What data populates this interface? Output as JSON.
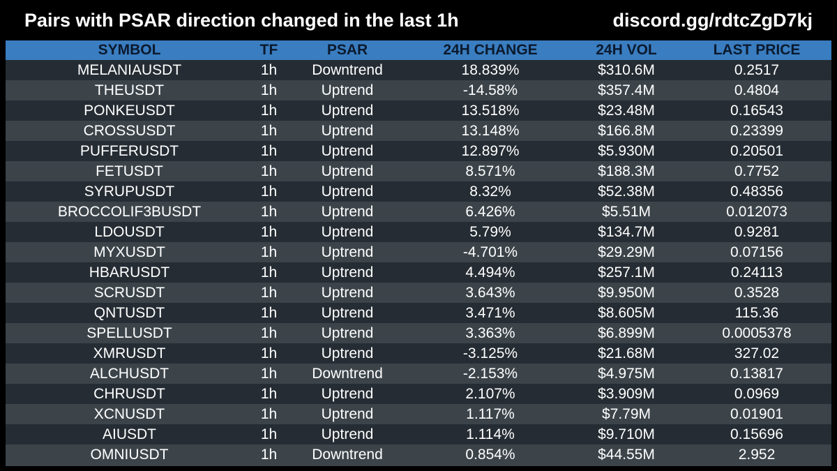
{
  "header": {
    "title": "Pairs with PSAR direction changed in the last 1h",
    "link": "discord.gg/rdtcZgD7kj"
  },
  "table": {
    "columns": [
      "SYMBOL",
      "TF",
      "PSAR",
      "24H CHANGE",
      "24H VOL",
      "LAST PRICE"
    ],
    "rows": [
      [
        "MELANIAUSDT",
        "1h",
        "Downtrend",
        "18.839%",
        "$310.6M",
        "0.2517"
      ],
      [
        "THEUSDT",
        "1h",
        "Uptrend",
        "-14.58%",
        "$357.4M",
        "0.4804"
      ],
      [
        "PONKEUSDT",
        "1h",
        "Uptrend",
        "13.518%",
        "$23.48M",
        "0.16543"
      ],
      [
        "CROSSUSDT",
        "1h",
        "Uptrend",
        "13.148%",
        "$166.8M",
        "0.23399"
      ],
      [
        "PUFFERUSDT",
        "1h",
        "Uptrend",
        "12.897%",
        "$5.930M",
        "0.20501"
      ],
      [
        "FETUSDT",
        "1h",
        "Uptrend",
        "8.571%",
        "$188.3M",
        "0.7752"
      ],
      [
        "SYRUPUSDT",
        "1h",
        "Uptrend",
        "8.32%",
        "$52.38M",
        "0.48356"
      ],
      [
        "BROCCOLIF3BUSDT",
        "1h",
        "Uptrend",
        "6.426%",
        "$5.51M",
        "0.012073"
      ],
      [
        "LDOUSDT",
        "1h",
        "Uptrend",
        "5.79%",
        "$134.7M",
        "0.9281"
      ],
      [
        "MYXUSDT",
        "1h",
        "Uptrend",
        "-4.701%",
        "$29.29M",
        "0.07156"
      ],
      [
        "HBARUSDT",
        "1h",
        "Uptrend",
        "4.494%",
        "$257.1M",
        "0.24113"
      ],
      [
        "SCRUSDT",
        "1h",
        "Uptrend",
        "3.643%",
        "$9.950M",
        "0.3528"
      ],
      [
        "QNTUSDT",
        "1h",
        "Uptrend",
        "3.471%",
        "$8.605M",
        "115.36"
      ],
      [
        "SPELLUSDT",
        "1h",
        "Uptrend",
        "3.363%",
        "$6.899M",
        "0.0005378"
      ],
      [
        "XMRUSDT",
        "1h",
        "Uptrend",
        "-3.125%",
        "$21.68M",
        "327.02"
      ],
      [
        "ALCHUSDT",
        "1h",
        "Downtrend",
        "-2.153%",
        "$4.975M",
        "0.13817"
      ],
      [
        "CHRUSDT",
        "1h",
        "Uptrend",
        "2.107%",
        "$3.909M",
        "0.0969"
      ],
      [
        "XCNUSDT",
        "1h",
        "Uptrend",
        "1.117%",
        "$7.79M",
        "0.01901"
      ],
      [
        "AIUSDT",
        "1h",
        "Uptrend",
        "1.114%",
        "$9.710M",
        "0.15696"
      ],
      [
        "OMNIUSDT",
        "1h",
        "Downtrend",
        "0.854%",
        "$44.55M",
        "2.952"
      ]
    ]
  },
  "colors": {
    "background": "#000000",
    "header_row": "#3a7dc0",
    "row_dark": "#252c33",
    "row_light": "#3c444a",
    "text": "#ffffff"
  }
}
